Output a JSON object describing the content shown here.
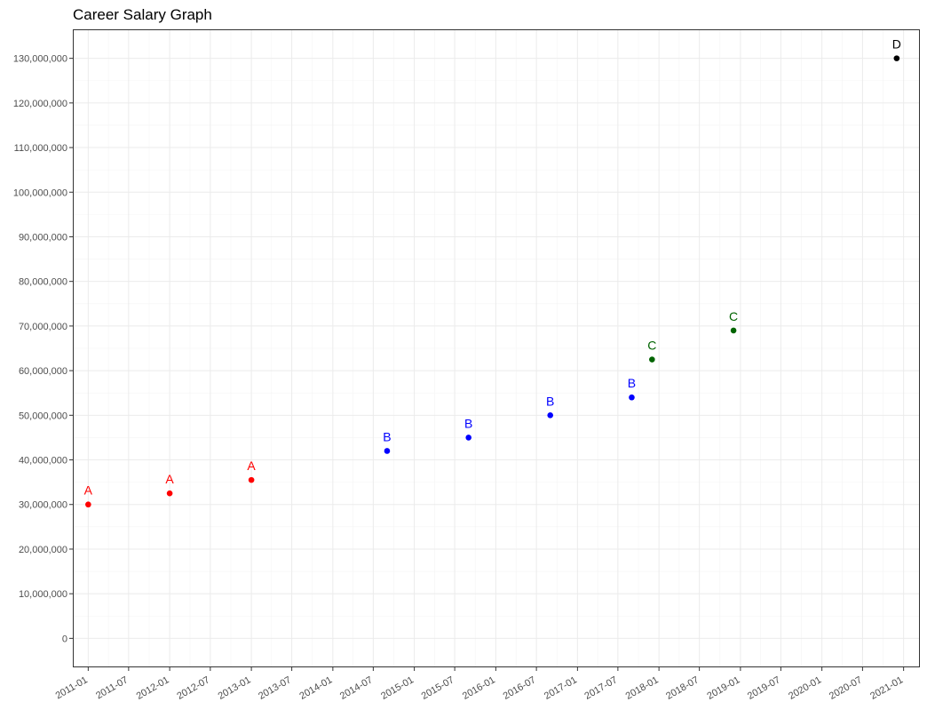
{
  "chart_data": {
    "type": "scatter",
    "title": "Career Salary Graph",
    "xlabel": "",
    "ylabel": "",
    "x_type": "date",
    "xlim": [
      "2010-10-24",
      "2021-03-15"
    ],
    "ylim": [
      -6500000,
      136500000
    ],
    "grid": true,
    "legend": "none",
    "y_ticks": [
      {
        "value": 0,
        "label": "0"
      },
      {
        "value": 10000000,
        "label": "10,000,000"
      },
      {
        "value": 20000000,
        "label": "20,000,000"
      },
      {
        "value": 30000000,
        "label": "30,000,000"
      },
      {
        "value": 40000000,
        "label": "40,000,000"
      },
      {
        "value": 50000000,
        "label": "50,000,000"
      },
      {
        "value": 60000000,
        "label": "60,000,000"
      },
      {
        "value": 70000000,
        "label": "70,000,000"
      },
      {
        "value": 80000000,
        "label": "80,000,000"
      },
      {
        "value": 90000000,
        "label": "90,000,000"
      },
      {
        "value": 100000000,
        "label": "100,000,000"
      },
      {
        "value": 110000000,
        "label": "110,000,000"
      },
      {
        "value": 120000000,
        "label": "120,000,000"
      },
      {
        "value": 130000000,
        "label": "130,000,000"
      }
    ],
    "x_ticks": [
      {
        "value": "2011-01-01",
        "label": "2011-01"
      },
      {
        "value": "2011-07-01",
        "label": "2011-07"
      },
      {
        "value": "2012-01-01",
        "label": "2012-01"
      },
      {
        "value": "2012-07-01",
        "label": "2012-07"
      },
      {
        "value": "2013-01-01",
        "label": "2013-01"
      },
      {
        "value": "2013-07-01",
        "label": "2013-07"
      },
      {
        "value": "2014-01-01",
        "label": "2014-01"
      },
      {
        "value": "2014-07-01",
        "label": "2014-07"
      },
      {
        "value": "2015-01-01",
        "label": "2015-01"
      },
      {
        "value": "2015-07-01",
        "label": "2015-07"
      },
      {
        "value": "2016-01-01",
        "label": "2016-01"
      },
      {
        "value": "2016-07-01",
        "label": "2016-07"
      },
      {
        "value": "2017-01-01",
        "label": "2017-01"
      },
      {
        "value": "2017-07-01",
        "label": "2017-07"
      },
      {
        "value": "2018-01-01",
        "label": "2018-01"
      },
      {
        "value": "2018-07-01",
        "label": "2018-07"
      },
      {
        "value": "2019-01-01",
        "label": "2019-01"
      },
      {
        "value": "2019-07-01",
        "label": "2019-07"
      },
      {
        "value": "2020-01-01",
        "label": "2020-01"
      },
      {
        "value": "2020-07-01",
        "label": "2020-07"
      },
      {
        "value": "2021-01-01",
        "label": "2021-01"
      }
    ],
    "points": [
      {
        "x": "2011-01-01",
        "y": 30000000,
        "label": "A",
        "color": "#ff0000"
      },
      {
        "x": "2012-01-01",
        "y": 32500000,
        "label": "A",
        "color": "#ff0000"
      },
      {
        "x": "2013-01-01",
        "y": 35500000,
        "label": "A",
        "color": "#ff0000"
      },
      {
        "x": "2014-09-01",
        "y": 42000000,
        "label": "B",
        "color": "#0000ff"
      },
      {
        "x": "2015-09-01",
        "y": 45000000,
        "label": "B",
        "color": "#0000ff"
      },
      {
        "x": "2016-09-01",
        "y": 50000000,
        "label": "B",
        "color": "#0000ff"
      },
      {
        "x": "2017-09-01",
        "y": 54000000,
        "label": "B",
        "color": "#0000ff"
      },
      {
        "x": "2017-12-01",
        "y": 62500000,
        "label": "C",
        "color": "#006400"
      },
      {
        "x": "2018-12-01",
        "y": 69000000,
        "label": "C",
        "color": "#006400"
      },
      {
        "x": "2020-12-01",
        "y": 130000000,
        "label": "D",
        "color": "#000000"
      }
    ]
  }
}
